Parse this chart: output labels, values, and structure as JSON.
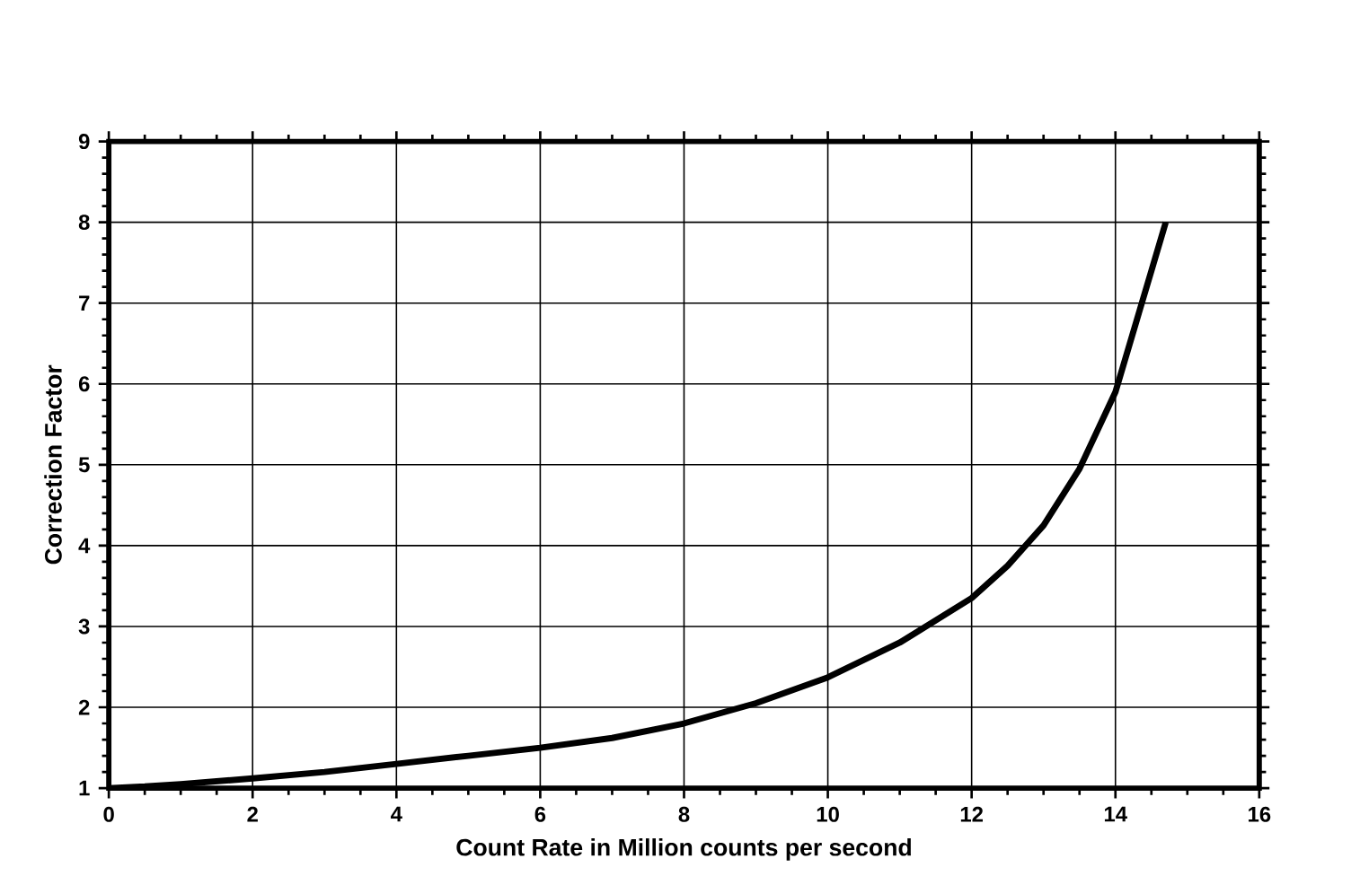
{
  "chart_data": {
    "type": "line",
    "xlabel": "Count Rate in Million counts per second",
    "ylabel": "Correction Factor",
    "xlim": [
      0,
      16
    ],
    "ylim": [
      1,
      9
    ],
    "xticks": [
      0,
      2,
      4,
      6,
      8,
      10,
      12,
      14,
      16
    ],
    "yticks": [
      1,
      2,
      3,
      4,
      5,
      6,
      7,
      8,
      9
    ],
    "grid": true,
    "series": [
      {
        "color": "#000000",
        "x": [
          0,
          0.5,
          1,
          2,
          3,
          4,
          5,
          6,
          7,
          8,
          9,
          10,
          11,
          12,
          12.5,
          13,
          13.5,
          14,
          14.3,
          14.5,
          14.7
        ],
        "values": [
          1,
          1.02,
          1.05,
          1.12,
          1.2,
          1.3,
          1.4,
          1.5,
          1.62,
          1.8,
          2.05,
          2.37,
          2.8,
          3.35,
          3.75,
          4.25,
          4.95,
          5.9,
          6.8,
          7.4,
          8.0
        ]
      }
    ]
  }
}
